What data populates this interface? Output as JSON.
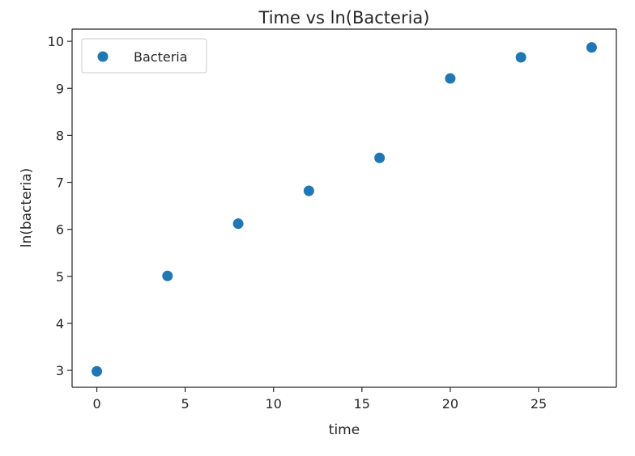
{
  "chart_data": {
    "type": "scatter",
    "title": "Time vs ln(Bacteria)",
    "xlabel": "time",
    "ylabel": "ln(bacteria)",
    "xlim": [
      -1.4,
      29.4
    ],
    "ylim": [
      2.64,
      10.26
    ],
    "xticks": [
      0,
      5,
      10,
      15,
      20,
      25
    ],
    "yticks": [
      3,
      4,
      5,
      6,
      7,
      8,
      9,
      10
    ],
    "grid": false,
    "legend": "top-left",
    "series": [
      {
        "name": "Bacteria",
        "color": "#1f77b4",
        "marker": "circle",
        "x": [
          0,
          4,
          8,
          12,
          16,
          20,
          24,
          28
        ],
        "y": [
          2.98,
          5.01,
          6.12,
          6.82,
          7.52,
          9.21,
          9.66,
          9.87
        ]
      }
    ]
  }
}
